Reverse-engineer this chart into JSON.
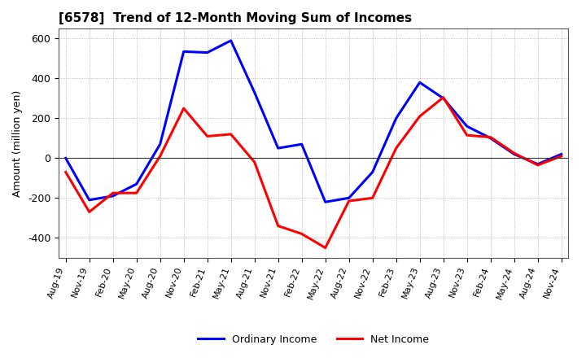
{
  "title": "[6578]  Trend of 12-Month Moving Sum of Incomes",
  "ylabel": "Amount (million yen)",
  "background_color": "#ffffff",
  "grid_color": "#aaaaaa",
  "x_labels": [
    "Aug-19",
    "Nov-19",
    "Feb-20",
    "May-20",
    "Aug-20",
    "Nov-20",
    "Feb-21",
    "May-21",
    "Aug-21",
    "Nov-21",
    "Feb-22",
    "May-22",
    "Aug-22",
    "Nov-22",
    "Feb-23",
    "May-23",
    "Aug-23",
    "Nov-23",
    "Feb-24",
    "May-24",
    "Aug-24",
    "Nov-24"
  ],
  "ordinary_income": [
    0,
    -210,
    -190,
    -130,
    70,
    535,
    530,
    590,
    330,
    50,
    70,
    -220,
    -200,
    -70,
    200,
    380,
    300,
    160,
    100,
    20,
    -30,
    20
  ],
  "net_income": [
    -70,
    -270,
    -175,
    -175,
    10,
    250,
    110,
    120,
    -20,
    -340,
    -380,
    -450,
    -215,
    -200,
    50,
    210,
    305,
    115,
    105,
    25,
    -35,
    10
  ],
  "ordinary_color": "#0000ff",
  "net_color": "#ff0000",
  "ylim": [
    -500,
    650
  ],
  "yticks": [
    -400,
    -200,
    0,
    200,
    400,
    600
  ],
  "line_width": 2.2,
  "title_fontsize": 11,
  "tick_fontsize": 8,
  "ylabel_fontsize": 9,
  "legend_fontsize": 9
}
